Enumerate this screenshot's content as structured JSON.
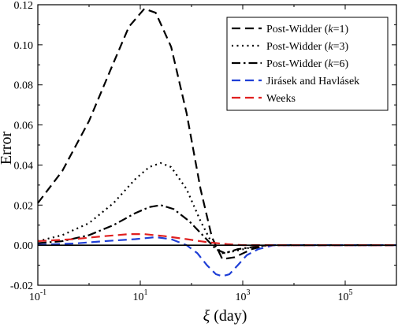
{
  "chart_data": {
    "type": "line",
    "xlabel": "ξ (day)",
    "xlabel_symbol": "ξ",
    "xlabel_unit": "(day)",
    "ylabel": "Error",
    "xscale": "log",
    "xlim": [
      0.1,
      1000000
    ],
    "ylim": [
      -0.02,
      0.12
    ],
    "x_ticks": [
      {
        "value": 0.1,
        "base": "10",
        "exp": "-1"
      },
      {
        "value": 10,
        "base": "10",
        "exp": "1"
      },
      {
        "value": 1000,
        "base": "10",
        "exp": "3"
      },
      {
        "value": 100000,
        "base": "10",
        "exp": "5"
      }
    ],
    "y_ticks": [
      -0.02,
      0.0,
      0.02,
      0.04,
      0.06,
      0.08,
      0.1,
      0.12
    ],
    "y_tick_labels": [
      "-0.02",
      "0.00",
      "0.02",
      "0.04",
      "0.06",
      "0.08",
      "0.10",
      "0.12"
    ],
    "grid": false,
    "zero_line": true,
    "legend_position": "top-right",
    "series": [
      {
        "name": "Post-Widder (k=1)",
        "legend_parts": [
          "Post-Widder (",
          "k",
          "=1)"
        ],
        "color": "#000000",
        "dash": "dash",
        "points": [
          [
            0.1,
            0.021
          ],
          [
            0.3,
            0.037
          ],
          [
            1,
            0.062
          ],
          [
            3,
            0.091
          ],
          [
            6,
            0.109
          ],
          [
            12,
            0.118
          ],
          [
            20,
            0.116
          ],
          [
            40,
            0.099
          ],
          [
            80,
            0.066
          ],
          [
            150,
            0.028
          ],
          [
            250,
            0.004
          ],
          [
            400,
            -0.007
          ],
          [
            700,
            -0.006
          ],
          [
            1500,
            -0.002
          ],
          [
            3000,
            0.0
          ],
          [
            1000000,
            0.0
          ]
        ]
      },
      {
        "name": "Post-Widder (k=3)",
        "legend_parts": [
          "Post-Widder (",
          "k",
          "=3)"
        ],
        "color": "#000000",
        "dash": "dot",
        "points": [
          [
            0.1,
            0.002
          ],
          [
            0.3,
            0.005
          ],
          [
            1,
            0.011
          ],
          [
            3,
            0.021
          ],
          [
            8,
            0.033
          ],
          [
            15,
            0.039
          ],
          [
            25,
            0.041
          ],
          [
            40,
            0.039
          ],
          [
            80,
            0.028
          ],
          [
            150,
            0.012
          ],
          [
            250,
            0.001
          ],
          [
            400,
            -0.004
          ],
          [
            700,
            -0.003
          ],
          [
            1500,
            -0.001
          ],
          [
            3000,
            0.0
          ],
          [
            1000000,
            0.0
          ]
        ]
      },
      {
        "name": "Post-Widder (k=6)",
        "legend_parts": [
          "Post-Widder (",
          "k",
          "=6)"
        ],
        "color": "#000000",
        "dash": "dashdot",
        "points": [
          [
            0.1,
            0.001
          ],
          [
            0.3,
            0.002
          ],
          [
            1,
            0.005
          ],
          [
            3,
            0.01
          ],
          [
            8,
            0.016
          ],
          [
            15,
            0.019
          ],
          [
            25,
            0.02
          ],
          [
            45,
            0.018
          ],
          [
            90,
            0.012
          ],
          [
            180,
            0.004
          ],
          [
            300,
            -0.002
          ],
          [
            450,
            -0.004
          ],
          [
            800,
            -0.002
          ],
          [
            1500,
            -0.001
          ],
          [
            3000,
            0.0
          ],
          [
            1000000,
            0.0
          ]
        ]
      },
      {
        "name": "Jirásek and Havlásek",
        "legend_parts": [
          "Jirásek and Havlásek"
        ],
        "color": "#1f3fd6",
        "dash": "dash",
        "points": [
          [
            0.1,
            0.0002
          ],
          [
            0.5,
            0.0008
          ],
          [
            2,
            0.002
          ],
          [
            8,
            0.003
          ],
          [
            20,
            0.004
          ],
          [
            40,
            0.003
          ],
          [
            80,
            0.0
          ],
          [
            130,
            -0.004
          ],
          [
            200,
            -0.01
          ],
          [
            300,
            -0.0145
          ],
          [
            400,
            -0.0155
          ],
          [
            550,
            -0.0145
          ],
          [
            800,
            -0.01
          ],
          [
            1200,
            -0.005
          ],
          [
            2000,
            -0.002
          ],
          [
            4000,
            0.0
          ],
          [
            1000000,
            0.0
          ]
        ]
      },
      {
        "name": "Weeks",
        "legend_parts": [
          "Weeks"
        ],
        "color": "#e02020",
        "dash": "dash",
        "points": [
          [
            0.1,
            0.002
          ],
          [
            0.5,
            0.003
          ],
          [
            2,
            0.0045
          ],
          [
            6,
            0.0055
          ],
          [
            12,
            0.0055
          ],
          [
            30,
            0.0045
          ],
          [
            80,
            0.003
          ],
          [
            200,
            0.0015
          ],
          [
            500,
            0.0005
          ],
          [
            1000,
            0.0
          ],
          [
            1000000,
            0.0
          ]
        ]
      }
    ]
  }
}
